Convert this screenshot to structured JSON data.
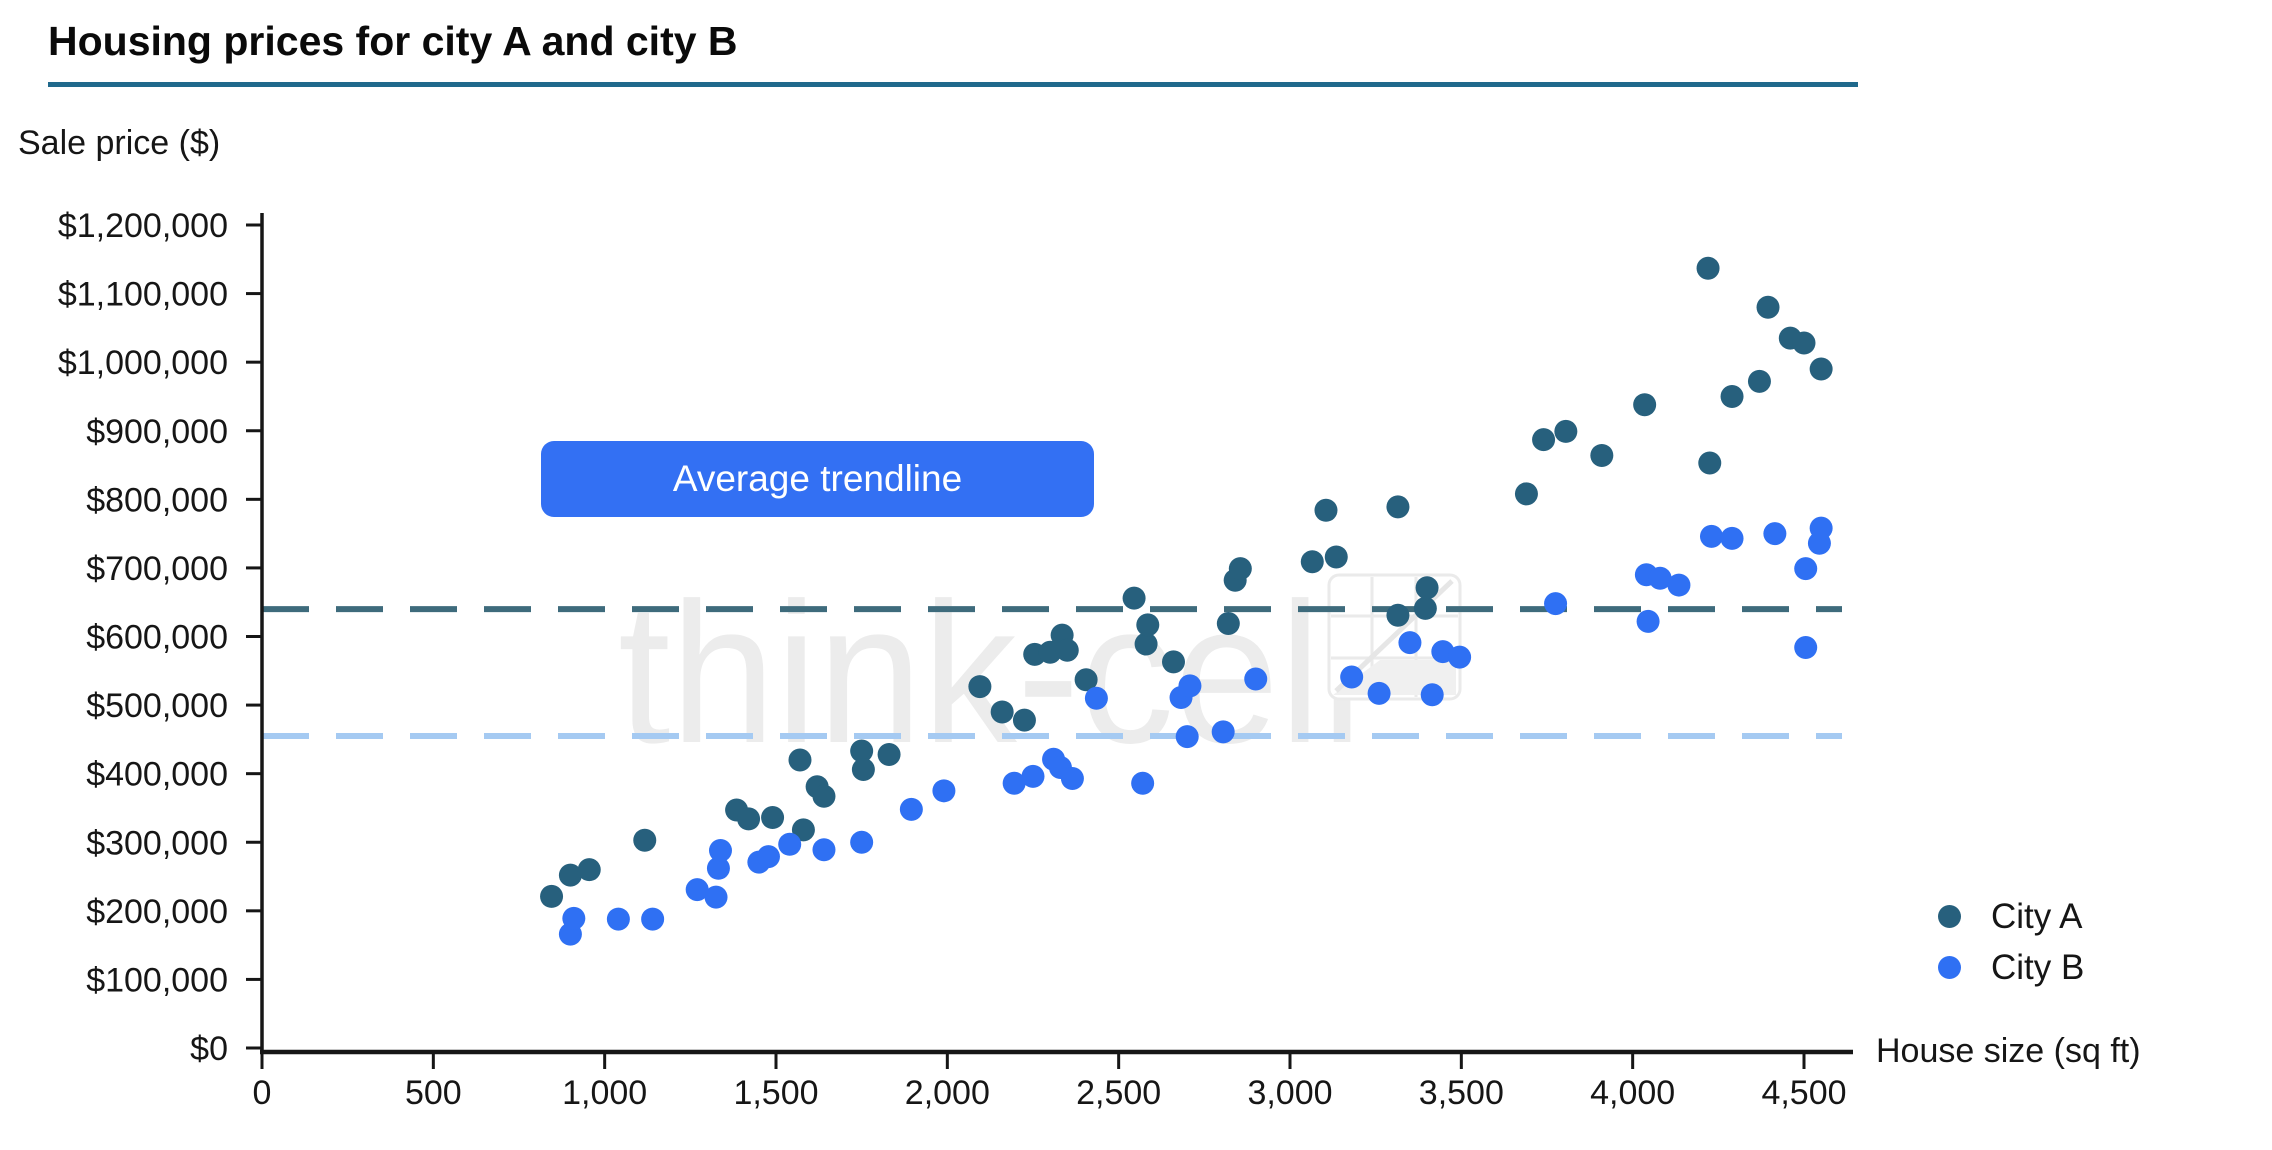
{
  "header": {
    "title": "Housing prices for city A and city B"
  },
  "axis": {
    "y_label": "Sale price ($)",
    "x_label": "House size (sq ft)"
  },
  "button": {
    "label": "Average trendline"
  },
  "legend": {
    "city_a": "City A",
    "city_b": "City B"
  },
  "watermark": {
    "text": "think-cell"
  },
  "colors": {
    "city_a": "#27607D",
    "city_b": "#2F70F3",
    "trend_a": "#3E6B7C",
    "trend_b": "#A5CAF2",
    "underline": "#20698C",
    "button_bg": "#3370F3",
    "watermark": "#ECECEC",
    "text": "#161616"
  },
  "chart_data": {
    "type": "scatter",
    "title": "Housing prices for city A and city B",
    "xlabel": "House size (sq ft)",
    "ylabel": "Sale price ($)",
    "xlim": [
      0,
      4500
    ],
    "ylim": [
      0,
      1200000
    ],
    "grid": false,
    "legend_position": "right-bottom",
    "x_tick_values": [
      0,
      500,
      1000,
      1500,
      2000,
      2500,
      3000,
      3500,
      4000,
      4500
    ],
    "x_tick_labels": [
      "0",
      "500",
      "1,000",
      "1,500",
      "2,000",
      "2,500",
      "3,000",
      "3,500",
      "4,000",
      "4,500"
    ],
    "y_tick_values": [
      0,
      100000,
      200000,
      300000,
      400000,
      500000,
      600000,
      700000,
      800000,
      900000,
      1000000,
      1100000,
      1200000
    ],
    "y_tick_labels": [
      "$0",
      "$100,000",
      "$200,000",
      "$300,000",
      "$400,000",
      "$500,000",
      "$600,000",
      "$700,000",
      "$800,000",
      "$900,000",
      "$1,000,000",
      "$1,100,000",
      "$1,200,000"
    ],
    "annotation": "Average trendline",
    "trendlines": [
      {
        "series": "City A",
        "value": 640000,
        "color": "#3E6B7C",
        "style": "dashed"
      },
      {
        "series": "City B",
        "value": 455000,
        "color": "#A5CAF2",
        "style": "dashed"
      }
    ],
    "series": [
      {
        "name": "City A",
        "color": "#27607D",
        "points": [
          [
            845,
            221000
          ],
          [
            900,
            252000
          ],
          [
            955,
            260000
          ],
          [
            1117,
            303000
          ],
          [
            1385,
            347000
          ],
          [
            1420,
            334000
          ],
          [
            1490,
            336000
          ],
          [
            1580,
            318000
          ],
          [
            1570,
            420000
          ],
          [
            1620,
            381000
          ],
          [
            1640,
            367000
          ],
          [
            1750,
            433000
          ],
          [
            1755,
            406000
          ],
          [
            1830,
            428000
          ],
          [
            2095,
            527000
          ],
          [
            2160,
            490000
          ],
          [
            2225,
            478000
          ],
          [
            2255,
            574000
          ],
          [
            2300,
            577000
          ],
          [
            2335,
            602000
          ],
          [
            2350,
            580000
          ],
          [
            2405,
            537000
          ],
          [
            2545,
            656000
          ],
          [
            2580,
            589000
          ],
          [
            2585,
            617000
          ],
          [
            2660,
            563000
          ],
          [
            2820,
            619000
          ],
          [
            2840,
            682000
          ],
          [
            2855,
            699000
          ],
          [
            3065,
            709000
          ],
          [
            3105,
            784000
          ],
          [
            3135,
            716000
          ],
          [
            3315,
            789000
          ],
          [
            3315,
            631000
          ],
          [
            3395,
            641000
          ],
          [
            3400,
            671000
          ],
          [
            3690,
            808000
          ],
          [
            3740,
            887000
          ],
          [
            3805,
            899000
          ],
          [
            3910,
            864000
          ],
          [
            4035,
            938000
          ],
          [
            4220,
            1137000
          ],
          [
            4225,
            853000
          ],
          [
            4290,
            950000
          ],
          [
            4370,
            972000
          ],
          [
            4395,
            1080000
          ],
          [
            4460,
            1035000
          ],
          [
            4500,
            1028000
          ],
          [
            4550,
            990000
          ]
        ]
      },
      {
        "name": "City B",
        "color": "#2F70F3",
        "points": [
          [
            900,
            166000
          ],
          [
            910,
            189000
          ],
          [
            1040,
            188000
          ],
          [
            1140,
            188000
          ],
          [
            1270,
            231000
          ],
          [
            1325,
            220000
          ],
          [
            1332,
            262000
          ],
          [
            1338,
            288000
          ],
          [
            1450,
            271000
          ],
          [
            1478,
            279000
          ],
          [
            1540,
            297000
          ],
          [
            1640,
            289000
          ],
          [
            1750,
            300000
          ],
          [
            1895,
            348000
          ],
          [
            1990,
            375000
          ],
          [
            2195,
            386000
          ],
          [
            2250,
            396000
          ],
          [
            2310,
            421000
          ],
          [
            2330,
            409000
          ],
          [
            2365,
            393000
          ],
          [
            2435,
            510000
          ],
          [
            2570,
            386000
          ],
          [
            2682,
            511000
          ],
          [
            2708,
            528000
          ],
          [
            2700,
            454000
          ],
          [
            2805,
            461000
          ],
          [
            2900,
            538000
          ],
          [
            3180,
            541000
          ],
          [
            3260,
            517000
          ],
          [
            3350,
            591000
          ],
          [
            3415,
            515000
          ],
          [
            3446,
            578000
          ],
          [
            3495,
            570000
          ],
          [
            3775,
            648000
          ],
          [
            4040,
            690000
          ],
          [
            4080,
            685000
          ],
          [
            4135,
            675000
          ],
          [
            4045,
            622000
          ],
          [
            4230,
            746000
          ],
          [
            4290,
            743000
          ],
          [
            4415,
            750000
          ],
          [
            4505,
            584000
          ],
          [
            4505,
            699000
          ],
          [
            4545,
            736000
          ],
          [
            4550,
            758000
          ]
        ]
      }
    ]
  }
}
